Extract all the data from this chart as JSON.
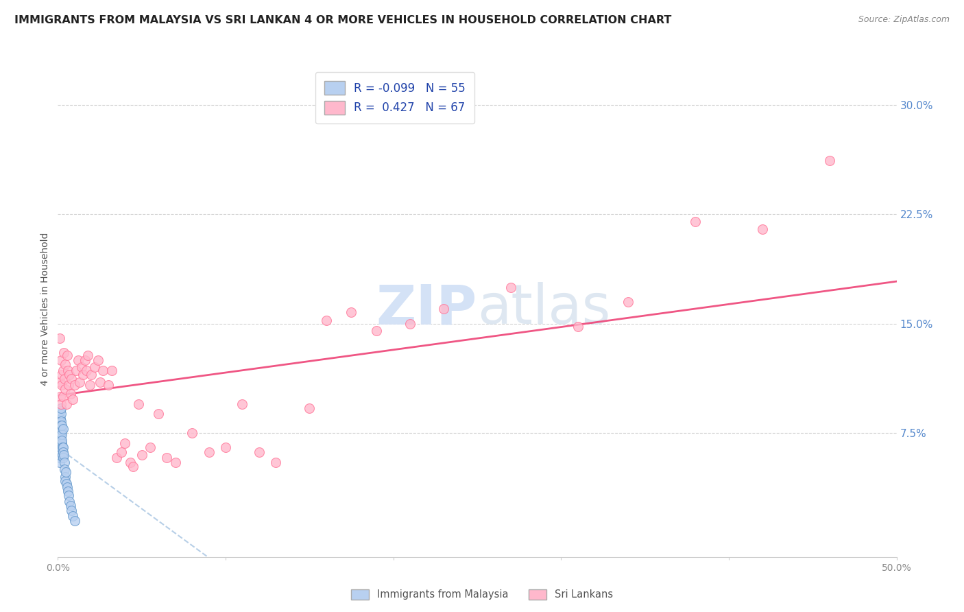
{
  "title": "IMMIGRANTS FROM MALAYSIA VS SRI LANKAN 4 OR MORE VEHICLES IN HOUSEHOLD CORRELATION CHART",
  "source": "Source: ZipAtlas.com",
  "ylabel": "4 or more Vehicles in Household",
  "right_yticks": [
    0.075,
    0.15,
    0.225,
    0.3
  ],
  "right_yticklabels": [
    "7.5%",
    "15.0%",
    "22.5%",
    "30.0%"
  ],
  "malaysia_color": "#b8d0f0",
  "malaysia_edge": "#6699cc",
  "srilanka_color": "#ffb8cc",
  "srilanka_edge": "#ff7799",
  "malaysia_R": -0.099,
  "malaysia_N": 55,
  "srilanka_R": 0.427,
  "srilanka_N": 67,
  "malaysia_x": [
    0.0005,
    0.0005,
    0.0008,
    0.0008,
    0.001,
    0.001,
    0.001,
    0.001,
    0.001,
    0.0012,
    0.0012,
    0.0012,
    0.0013,
    0.0013,
    0.0013,
    0.0015,
    0.0015,
    0.0015,
    0.0016,
    0.0016,
    0.0017,
    0.0017,
    0.0018,
    0.0018,
    0.0019,
    0.0019,
    0.002,
    0.002,
    0.002,
    0.0022,
    0.0022,
    0.0024,
    0.0025,
    0.0025,
    0.0026,
    0.0027,
    0.003,
    0.003,
    0.0032,
    0.0033,
    0.0035,
    0.0038,
    0.004,
    0.0042,
    0.0045,
    0.0048,
    0.005,
    0.0055,
    0.006,
    0.0065,
    0.007,
    0.0075,
    0.008,
    0.009,
    0.01
  ],
  "malaysia_y": [
    0.075,
    0.065,
    0.08,
    0.07,
    0.073,
    0.068,
    0.062,
    0.058,
    0.055,
    0.072,
    0.068,
    0.06,
    0.078,
    0.072,
    0.065,
    0.085,
    0.08,
    0.075,
    0.09,
    0.082,
    0.088,
    0.078,
    0.092,
    0.075,
    0.083,
    0.07,
    0.08,
    0.072,
    0.065,
    0.077,
    0.068,
    0.074,
    0.08,
    0.07,
    0.065,
    0.06,
    0.078,
    0.065,
    0.062,
    0.058,
    0.06,
    0.055,
    0.05,
    0.045,
    0.042,
    0.048,
    0.04,
    0.038,
    0.035,
    0.032,
    0.028,
    0.025,
    0.022,
    0.018,
    0.015
  ],
  "srilanka_x": [
    0.001,
    0.0013,
    0.0015,
    0.0018,
    0.002,
    0.0022,
    0.0025,
    0.003,
    0.0032,
    0.0035,
    0.004,
    0.0042,
    0.0045,
    0.005,
    0.0055,
    0.006,
    0.0065,
    0.007,
    0.0075,
    0.008,
    0.009,
    0.01,
    0.011,
    0.012,
    0.013,
    0.014,
    0.015,
    0.016,
    0.017,
    0.018,
    0.019,
    0.02,
    0.022,
    0.024,
    0.025,
    0.027,
    0.03,
    0.032,
    0.035,
    0.038,
    0.04,
    0.043,
    0.045,
    0.048,
    0.05,
    0.055,
    0.06,
    0.065,
    0.07,
    0.08,
    0.09,
    0.1,
    0.11,
    0.12,
    0.13,
    0.15,
    0.16,
    0.175,
    0.19,
    0.21,
    0.23,
    0.27,
    0.31,
    0.34,
    0.38,
    0.42,
    0.46
  ],
  "srilanka_y": [
    0.14,
    0.1,
    0.11,
    0.095,
    0.125,
    0.115,
    0.108,
    0.118,
    0.1,
    0.13,
    0.112,
    0.105,
    0.122,
    0.095,
    0.128,
    0.118,
    0.108,
    0.115,
    0.102,
    0.112,
    0.098,
    0.108,
    0.118,
    0.125,
    0.11,
    0.12,
    0.115,
    0.125,
    0.118,
    0.128,
    0.108,
    0.115,
    0.12,
    0.125,
    0.11,
    0.118,
    0.108,
    0.118,
    0.058,
    0.062,
    0.068,
    0.055,
    0.052,
    0.095,
    0.06,
    0.065,
    0.088,
    0.058,
    0.055,
    0.075,
    0.062,
    0.065,
    0.095,
    0.062,
    0.055,
    0.092,
    0.152,
    0.158,
    0.145,
    0.15,
    0.16,
    0.175,
    0.148,
    0.165,
    0.22,
    0.215,
    0.262
  ],
  "background_color": "#ffffff",
  "grid_color": "#cccccc",
  "title_fontsize": 11.5,
  "axis_fontsize": 10,
  "legend_fontsize": 11,
  "watermark_color": "#d0dff5",
  "xmin": 0.0,
  "xmax": 0.5,
  "ymin": -0.01,
  "ymax": 0.33
}
